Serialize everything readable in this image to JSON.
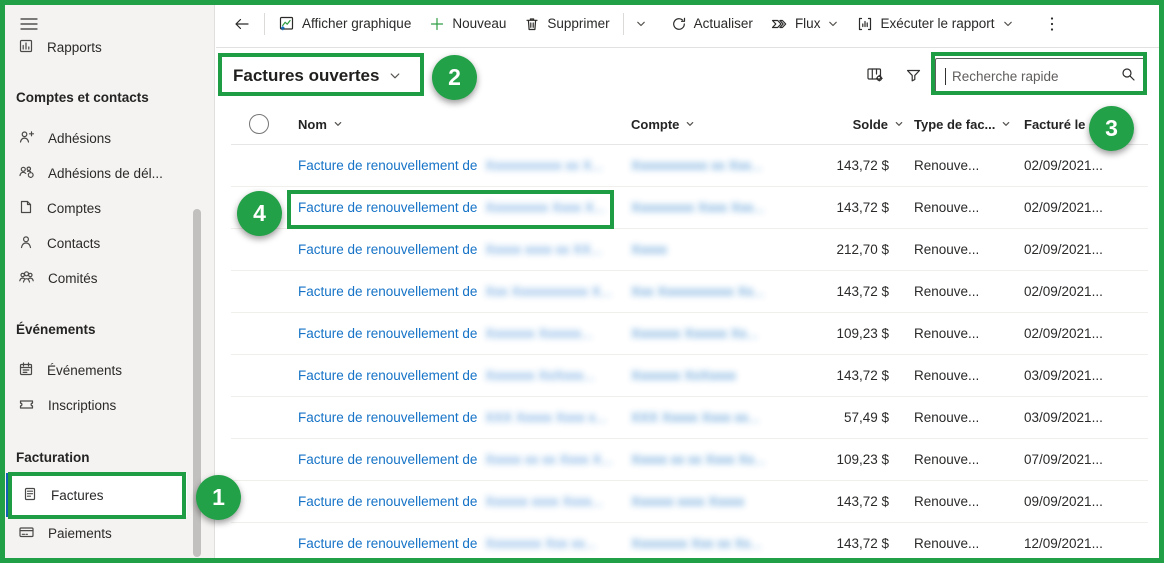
{
  "sidebar": {
    "menu_icon": "hamburger-icon",
    "items_top": [
      {
        "label": "Rapports",
        "icon": "report-icon"
      }
    ],
    "groups": [
      {
        "header": "Comptes et contacts",
        "items": [
          {
            "label": "Adhésions",
            "icon": "person-add-icon"
          },
          {
            "label": "Adhésions de dél...",
            "icon": "people-share-icon"
          },
          {
            "label": "Comptes",
            "icon": "accounts-icon"
          },
          {
            "label": "Contacts",
            "icon": "contact-icon"
          },
          {
            "label": "Comités",
            "icon": "people-group-icon"
          }
        ]
      },
      {
        "header": "Événements",
        "items": [
          {
            "label": "Événements",
            "icon": "calendar-icon"
          },
          {
            "label": "Inscriptions",
            "icon": "ticket-icon"
          }
        ]
      },
      {
        "header": "Facturation",
        "items": [
          {
            "label": "Factures",
            "icon": "invoice-icon",
            "selected": true
          },
          {
            "label": "Paiements",
            "icon": "payment-icon"
          }
        ]
      }
    ]
  },
  "toolbar": {
    "back_icon": "back-arrow-icon",
    "buttons": [
      {
        "label": "Afficher graphique",
        "icon": "chart-icon"
      },
      {
        "label": "Nouveau",
        "icon": "plus-icon"
      },
      {
        "label": "Supprimer",
        "icon": "trash-icon",
        "split": true
      },
      {
        "label": "Actualiser",
        "icon": "refresh-icon"
      },
      {
        "label": "Flux",
        "icon": "flow-icon",
        "dropdown": true
      },
      {
        "label": "Exécuter le rapport",
        "icon": "run-report-icon",
        "dropdown": true
      }
    ],
    "overflow_icon": "more-vertical-icon"
  },
  "view": {
    "selector": "Factures ouvertes"
  },
  "grid_tools": {
    "edit_columns_icon": "edit-columns-icon",
    "filter_icon": "filter-icon"
  },
  "search": {
    "placeholder": "Recherche rapide",
    "icon": "search-icon"
  },
  "table": {
    "columns": [
      {
        "label": "Nom"
      },
      {
        "label": "Compte"
      },
      {
        "label": "Solde"
      },
      {
        "label": "Type de fac..."
      },
      {
        "label": "Facturé le",
        "sort": "asc"
      }
    ],
    "rows": [
      {
        "name": "Facture de renouvellement de",
        "name_redacted": "Xxxxxxxxxxx xx X...",
        "compte_redacted": "Xxxxxxxxxxx xx Xxx...",
        "solde": "143,72 $",
        "type": "Renouve...",
        "date": "02/09/2021..."
      },
      {
        "name": "Facture de renouvellement de",
        "name_redacted": "Xxxxxxxxx Xxxx X...",
        "compte_redacted": "Xxxxxxxxx Xxxx Xxx...",
        "solde": "143,72 $",
        "type": "Renouve...",
        "date": "02/09/2021..."
      },
      {
        "name": "Facture de renouvellement de",
        "name_redacted": "Xxxxx xxxx xx XX...",
        "compte_redacted": "Xxxxx",
        "solde": "212,70 $",
        "type": "Renouve...",
        "date": "02/09/2021..."
      },
      {
        "name": "Facture de renouvellement de",
        "name_redacted": "Xxx Xxxxxxxxxxx X...",
        "compte_redacted": "Xxx Xxxxxxxxxxx Xx...",
        "solde": "143,72 $",
        "type": "Renouve...",
        "date": "02/09/2021..."
      },
      {
        "name": "Facture de renouvellement de",
        "name_redacted": "Xxxxxxx Xxxxxx...",
        "compte_redacted": "Xxxxxxx Xxxxxx Xx...",
        "solde": "109,23 $",
        "type": "Renouve...",
        "date": "02/09/2021..."
      },
      {
        "name": "Facture de renouvellement de",
        "name_redacted": "Xxxxxxx XxXxxx...",
        "compte_redacted": "Xxxxxxx XxXxxxx",
        "solde": "143,72 $",
        "type": "Renouve...",
        "date": "03/09/2021..."
      },
      {
        "name": "Facture de renouvellement de",
        "name_redacted": "XXX Xxxxx Xxxx x...",
        "compte_redacted": "XXX Xxxxx Xxxx xx...",
        "solde": "57,49 $",
        "type": "Renouve...",
        "date": "03/09/2021..."
      },
      {
        "name": "Facture de renouvellement de",
        "name_redacted": "Xxxxx xx xx Xxxx X...",
        "compte_redacted": "Xxxxx xx xx Xxxx Xx...",
        "solde": "109,23 $",
        "type": "Renouve...",
        "date": "07/09/2021..."
      },
      {
        "name": "Facture de renouvellement de",
        "name_redacted": "Xxxxxx xxxx Xxxx...",
        "compte_redacted": "Xxxxxx xxxx Xxxxx",
        "solde": "143,72 $",
        "type": "Renouve...",
        "date": "09/09/2021..."
      },
      {
        "name": "Facture de renouvellement de",
        "name_redacted": "Xxxxxxxx Xxx xx...",
        "compte_redacted": "Xxxxxxxx Xxx xx Xx...",
        "solde": "143,72 $",
        "type": "Renouve...",
        "date": "12/09/2021..."
      }
    ]
  },
  "annotations": {
    "steps": [
      "1",
      "2",
      "3",
      "4"
    ]
  },
  "colors": {
    "annotation_green": "#21a047",
    "link_blue": "#1673c7",
    "selected_bar_blue": "#1160b8"
  }
}
